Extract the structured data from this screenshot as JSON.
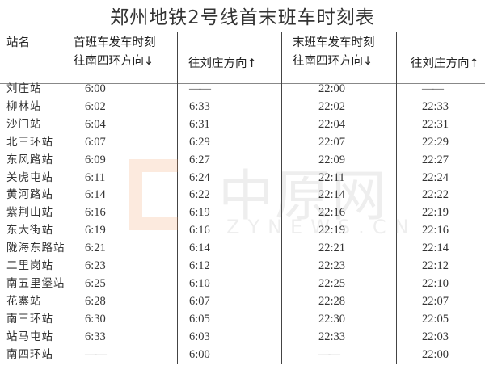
{
  "title": "郑州地铁2号线首末班车时刻表",
  "headers": {
    "station": "站名",
    "first_train": "首班车发车时刻",
    "last_train": "末班车发车时刻",
    "dir_south": "往南四环方向↓",
    "dir_north": "往刘庄方向↑"
  },
  "watermark": {
    "cn": "中原网",
    "en": "ZYNEWS.CN"
  },
  "rows": [
    {
      "station": "刘庄站",
      "first_south": "6:00",
      "first_north": "——",
      "last_south": "22:00",
      "last_north": "——"
    },
    {
      "station": "柳林站",
      "first_south": "6:02",
      "first_north": "6:33",
      "last_south": "22:02",
      "last_north": "22:33"
    },
    {
      "station": "沙门站",
      "first_south": "6:04",
      "first_north": "6:31",
      "last_south": "22:04",
      "last_north": "22:31"
    },
    {
      "station": "北三环站",
      "first_south": "6:07",
      "first_north": "6:29",
      "last_south": "22:07",
      "last_north": "22:29"
    },
    {
      "station": "东风路站",
      "first_south": "6:09",
      "first_north": "6:27",
      "last_south": "22:09",
      "last_north": "22:27"
    },
    {
      "station": "关虎屯站",
      "first_south": "6:11",
      "first_north": "6:24",
      "last_south": "22:11",
      "last_north": "22:24"
    },
    {
      "station": "黄河路站",
      "first_south": "6:14",
      "first_north": "6:22",
      "last_south": "22:14",
      "last_north": "22:22"
    },
    {
      "station": "紫荆山站",
      "first_south": "6:16",
      "first_north": "6:19",
      "last_south": "22:16",
      "last_north": "22:19"
    },
    {
      "station": "东大街站",
      "first_south": "6:19",
      "first_north": "6:16",
      "last_south": "22:19",
      "last_north": "22:16"
    },
    {
      "station": "陇海东路站",
      "first_south": "6:21",
      "first_north": "6:14",
      "last_south": "22:21",
      "last_north": "22:14"
    },
    {
      "station": "二里岗站",
      "first_south": "6:23",
      "first_north": "6:12",
      "last_south": "22:23",
      "last_north": "22:12"
    },
    {
      "station": "南五里堡站",
      "first_south": "6:25",
      "first_north": "6:10",
      "last_south": "22:25",
      "last_north": "22:10"
    },
    {
      "station": "花寨站",
      "first_south": "6:28",
      "first_north": "6:07",
      "last_south": "22:28",
      "last_north": "22:07"
    },
    {
      "station": "南三环站",
      "first_south": "6:30",
      "first_north": "6:05",
      "last_south": "22:30",
      "last_north": "22:05"
    },
    {
      "station": "站马屯站",
      "first_south": "6:33",
      "first_north": "6:03",
      "last_south": "22:33",
      "last_north": "22:03"
    },
    {
      "station": "南四环站",
      "first_south": "——",
      "first_north": "6:00",
      "last_south": "——",
      "last_north": "22:00"
    }
  ]
}
